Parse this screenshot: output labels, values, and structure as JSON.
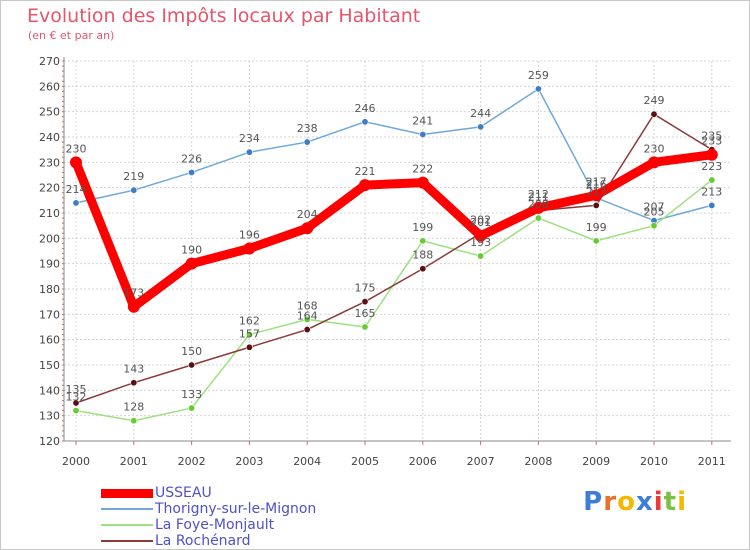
{
  "chart_data": {
    "type": "line",
    "title": "Evolution des Impôts locaux par Habitant",
    "subtitle": "(en € et par an)",
    "categories": [
      "2000",
      "2001",
      "2002",
      "2003",
      "2004",
      "2005",
      "2006",
      "2007",
      "2008",
      "2009",
      "2010",
      "2011"
    ],
    "ylim": [
      120,
      270
    ],
    "yticks": [
      120,
      130,
      140,
      150,
      160,
      170,
      180,
      190,
      200,
      210,
      220,
      230,
      240,
      250,
      260,
      270
    ],
    "grid": true,
    "legend_position": "bottom-left",
    "series": [
      {
        "name": "USSEAU",
        "values": [
          230,
          173,
          190,
          196,
          204,
          221,
          222,
          201,
          212,
          217,
          230,
          233
        ],
        "color": "#ff0000",
        "label_color": "#555555",
        "highlight": true
      },
      {
        "name": "Thorigny-sur-le-Mignon",
        "values": [
          214,
          219,
          226,
          234,
          238,
          246,
          241,
          244,
          259,
          216,
          207,
          213
        ],
        "color": "#6fa8dc",
        "marker": "#3d7cc9",
        "label_color": "#555555"
      },
      {
        "name": "La Foye-Monjault",
        "values": [
          132,
          128,
          133,
          162,
          168,
          165,
          199,
          193,
          208,
          199,
          205,
          223
        ],
        "color": "#9ee082",
        "marker": "#66cc33",
        "label_color": "#555555"
      },
      {
        "name": "La Rochénard",
        "values": [
          135,
          143,
          150,
          157,
          164,
          175,
          188,
          202,
          211,
          213,
          249,
          235
        ],
        "color": "#8b3a3a",
        "marker": "#5a1010",
        "label_color": "#555555"
      }
    ]
  },
  "brand": {
    "name": "Proxiti",
    "letters": [
      "P",
      "r",
      "o",
      "x",
      "i",
      "t",
      "i"
    ],
    "colors": [
      "#3b7dd8",
      "#e8702a",
      "#f5b800",
      "#3b7dd8",
      "#e83a3a",
      "#7ac143",
      "#f5b800"
    ]
  }
}
